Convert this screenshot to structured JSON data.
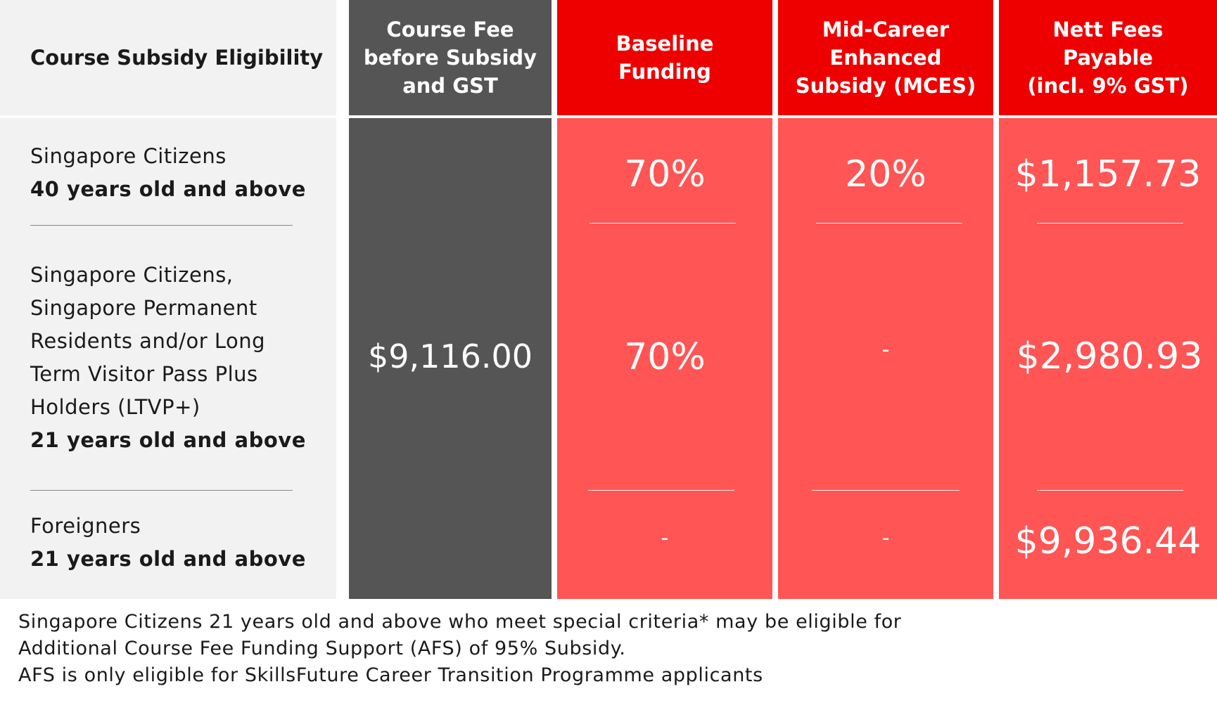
{
  "header": {
    "eligibility": "Course Subsidy Eligibility",
    "course_fee": [
      "Course Fee",
      "before Subsidy",
      "and GST"
    ],
    "baseline": [
      "Baseline",
      "Funding"
    ],
    "mces": [
      "Mid-Career",
      "Enhanced",
      "Subsidy (MCES)"
    ],
    "nett": [
      "Nett Fees",
      "Payable",
      "(incl. 9% GST)"
    ]
  },
  "rows": [
    {
      "eligibility_lines": [
        "Singapore Citizens"
      ],
      "age": "40 years old and above",
      "baseline": "70%",
      "mces": "20%",
      "nett": "$1,157.73"
    },
    {
      "eligibility_lines": [
        "Singapore Citizens,",
        "Singapore Permanent",
        "Residents and/or Long",
        "Term Visitor Pass Plus",
        "Holders (LTVP+)"
      ],
      "age": "21 years old and above",
      "baseline": "70%",
      "mces": "-",
      "nett": "$2,980.93"
    },
    {
      "eligibility_lines": [
        "Foreigners"
      ],
      "age": "21 years old and above",
      "baseline": "-",
      "mces": "-",
      "nett": "$9,936.44"
    }
  ],
  "course_fee_value": "$9,116.00",
  "footnote": [
    "Singapore Citizens 21 years old and above who meet special criteria* may be eligible for",
    "Additional Course Fee Funding Support (AFS) of 95% Subsidy.",
    "AFS is only eligible for SkillsFuture Career Transition Programme applicants"
  ],
  "colors": {
    "header_red": "#ee0000",
    "cell_red": "#ff5555",
    "dark_grey": "#555555",
    "light_grey": "#f2f2f2"
  }
}
